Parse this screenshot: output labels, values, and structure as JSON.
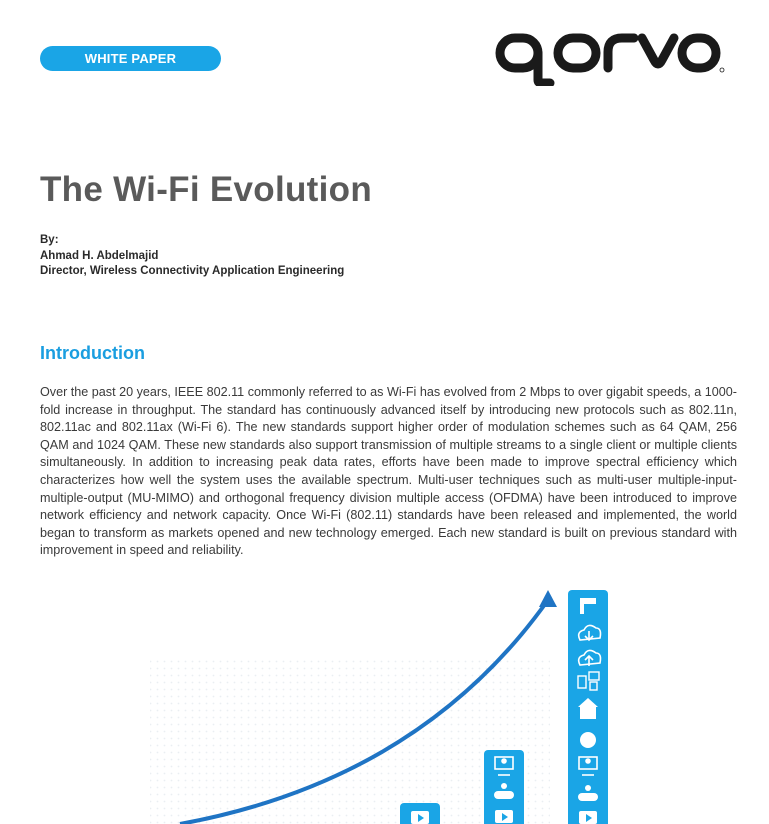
{
  "badge": "WHITE PAPER",
  "logo": {
    "text": "qorvo",
    "color": "#1a1a1a"
  },
  "title": "The Wi-Fi Evolution",
  "byline": {
    "by": "By:",
    "author": "Ahmad H. Abdelmajid",
    "role": "Director, Wireless Connectivity Application Engineering"
  },
  "section_heading": "Introduction",
  "paragraph": "Over the past 20 years, IEEE 802.11 commonly referred to as Wi-Fi has evolved from 2 Mbps to over gigabit speeds, a 1000-fold increase in throughput. The standard has continuously advanced itself by introducing new protocols such as 802.11n, 802.11ac and 802.11ax (Wi-Fi 6). The new standards support higher order of modulation schemes such as 64 QAM, 256 QAM and 1024 QAM. These new standards also support transmission of multiple streams to a single client or multiple clients simultaneously. In addition to increasing peak data rates, efforts have been made to improve spectral efficiency which characterizes how well the system uses the available spectrum. Multi-user techniques such as multi-user multiple-input-multiple-output (MU-MIMO) and orthogonal frequency division multiple access (OFDMA) have been introduced to improve network efficiency and network capacity. Once Wi-Fi (802.11) standards have been released and implemented, the world began to transform as markets opened and new technology emerged. Each new standard is built on previous standard with improvement in speed and reliability.",
  "colors": {
    "accent": "#1aa5e6",
    "heading": "#1a9ee0",
    "arrow": "#1f74c4"
  },
  "figure": {
    "columns": [
      {
        "icons": [
          "play-icon"
        ]
      },
      {
        "icons": [
          "person-screen-icon",
          "gamepad-icon",
          "play-icon"
        ]
      },
      {
        "icons": [
          "camera-icon",
          "cloud-download-icon",
          "cloud-upload-icon",
          "devices-icon",
          "house-icon",
          "head-icon",
          "person-screen-icon",
          "gamepad-icon",
          "play-icon"
        ]
      }
    ]
  }
}
